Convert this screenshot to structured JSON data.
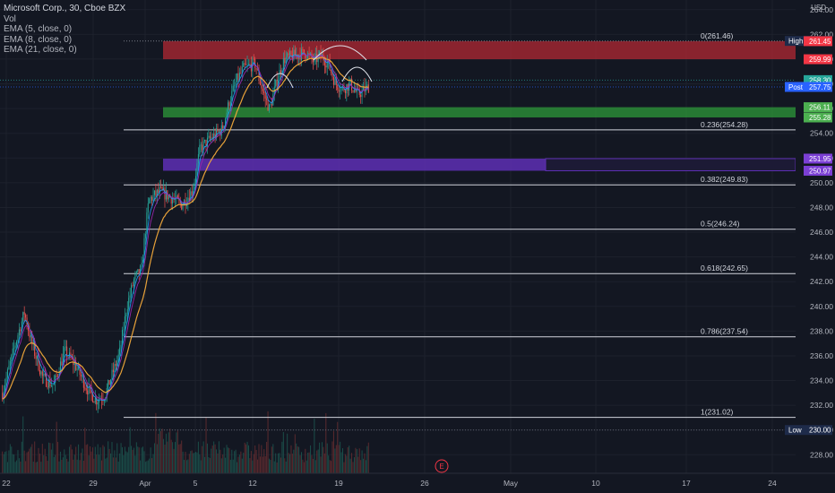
{
  "legend": {
    "title": "Microsoft Corp., 30, Cboe BZX",
    "indicators": [
      "Vol",
      "EMA (5, close, 0)",
      "EMA (8, close, 0)",
      "EMA (21, close, 0)"
    ]
  },
  "chart_data": {
    "type": "candlestick",
    "currency": "USD",
    "ylim": [
      226.5,
      264.2
    ],
    "y_ticks": [
      228,
      230,
      232,
      234,
      236,
      238,
      240,
      242,
      244,
      246,
      248,
      250,
      252,
      254,
      256,
      258,
      260,
      262,
      264
    ],
    "x_ticks": [
      "22",
      "29",
      "Apr",
      "5",
      "7",
      "12",
      "19",
      "26",
      "May",
      "10",
      "17",
      "24"
    ],
    "price_path": [
      [
        0,
        233.0
      ],
      [
        0.04,
        237.5
      ],
      [
        0.06,
        239.5
      ],
      [
        0.08,
        237.0
      ],
      [
        0.11,
        234.2
      ],
      [
        0.14,
        233.6
      ],
      [
        0.17,
        236.4
      ],
      [
        0.2,
        235.2
      ],
      [
        0.23,
        233.4
      ],
      [
        0.255,
        232.4
      ],
      [
        0.28,
        232.8
      ],
      [
        0.3,
        234.5
      ],
      [
        0.32,
        236.2
      ],
      [
        0.34,
        240.0
      ],
      [
        0.36,
        242.2
      ],
      [
        0.38,
        243.0
      ],
      [
        0.39,
        246.0
      ],
      [
        0.4,
        248.6
      ],
      [
        0.43,
        249.3
      ],
      [
        0.46,
        248.8
      ],
      [
        0.49,
        248.2
      ],
      [
        0.52,
        249.4
      ],
      [
        0.54,
        252.8
      ],
      [
        0.57,
        253.6
      ],
      [
        0.6,
        254.3
      ],
      [
        0.62,
        256.6
      ],
      [
        0.64,
        258.3
      ],
      [
        0.66,
        259.3
      ],
      [
        0.69,
        259.6
      ],
      [
        0.71,
        257.5
      ],
      [
        0.73,
        255.9
      ],
      [
        0.75,
        258.3
      ],
      [
        0.77,
        260.0
      ],
      [
        0.8,
        260.3
      ],
      [
        0.83,
        260.5
      ],
      [
        0.85,
        259.8
      ],
      [
        0.87,
        260.3
      ],
      [
        0.89,
        259.6
      ],
      [
        0.91,
        258.0
      ],
      [
        0.93,
        257.6
      ],
      [
        0.95,
        258.0
      ],
      [
        0.97,
        257.1
      ],
      [
        1.0,
        257.75
      ]
    ],
    "fibonacci": [
      {
        "label": "0(261.46)",
        "value": 261.46
      },
      {
        "label": "0.236(254.28)",
        "value": 254.28
      },
      {
        "label": "0.382(249.83)",
        "value": 249.83
      },
      {
        "label": "0.5(246.24)",
        "value": 246.24
      },
      {
        "label": "0.618(242.65)",
        "value": 242.65
      },
      {
        "label": "0.786(237.54)",
        "value": 237.54
      },
      {
        "label": "1(231.02)",
        "value": 231.02
      }
    ],
    "zones": [
      {
        "name": "resistance",
        "from": 259.99,
        "to": 261.45,
        "color": "#b22833"
      },
      {
        "name": "support",
        "from": 255.28,
        "to": 256.11,
        "color": "#2e9a3a"
      },
      {
        "name": "demand",
        "from": 250.97,
        "to": 251.95,
        "color": "#5e2fb4"
      }
    ],
    "price_labels": [
      {
        "label": "High",
        "value": "261.47",
        "price": 261.47,
        "color": "#1e2b4a"
      },
      {
        "label": "",
        "value": "261.45",
        "price": 261.45,
        "color": "#f23645"
      },
      {
        "label": "",
        "value": "259.99",
        "price": 259.99,
        "color": "#f23645"
      },
      {
        "label": "",
        "value": "258.30",
        "price": 258.3,
        "color": "#26a69a"
      },
      {
        "label": "Post",
        "value": "257.75",
        "price": 257.75,
        "color": "#2962ff"
      },
      {
        "label": "",
        "value": "256.11",
        "price": 256.11,
        "color": "#4caf50"
      },
      {
        "label": "",
        "value": "255.28",
        "price": 255.28,
        "color": "#4caf50"
      },
      {
        "label": "",
        "value": "251.95",
        "price": 251.95,
        "color": "#7b3fd4"
      },
      {
        "label": "",
        "value": "250.97",
        "price": 250.97,
        "color": "#7b3fd4"
      },
      {
        "label": "Low",
        "value": "230.00",
        "price": 230.0,
        "color": "#1e2b4a"
      }
    ],
    "earnings_marker": "E",
    "colors": {
      "up": "#26a69a",
      "down": "#ef5350",
      "ema5": "#2196f3",
      "ema8": "#9c27b0",
      "ema21": "#f2a93b"
    }
  }
}
